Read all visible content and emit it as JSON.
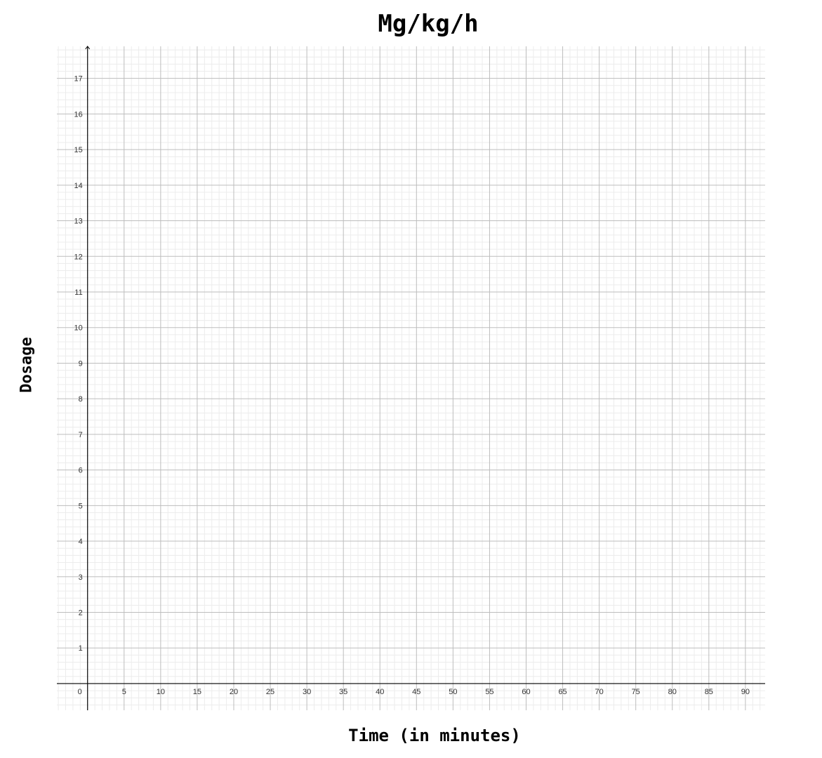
{
  "chart_data": {
    "type": "line",
    "title": "Mg/kg/h",
    "xlabel": "Time (in minutes)",
    "ylabel": "Dosage",
    "xlim": [
      -4.2,
      92.7
    ],
    "ylim": [
      -0.75,
      17.9
    ],
    "x_ticks": [
      0,
      5,
      10,
      15,
      20,
      25,
      30,
      35,
      40,
      45,
      50,
      55,
      60,
      65,
      70,
      75,
      80,
      85,
      90
    ],
    "y_ticks": [
      1,
      2,
      3,
      4,
      5,
      6,
      7,
      8,
      9,
      10,
      11,
      12,
      13,
      14,
      15,
      16,
      17
    ],
    "grid": true,
    "series": []
  },
  "colors": {
    "major_grid": "#bdbdbd",
    "minor_grid": "#ececec",
    "axis": "#000000",
    "tick_text": "#333333"
  }
}
